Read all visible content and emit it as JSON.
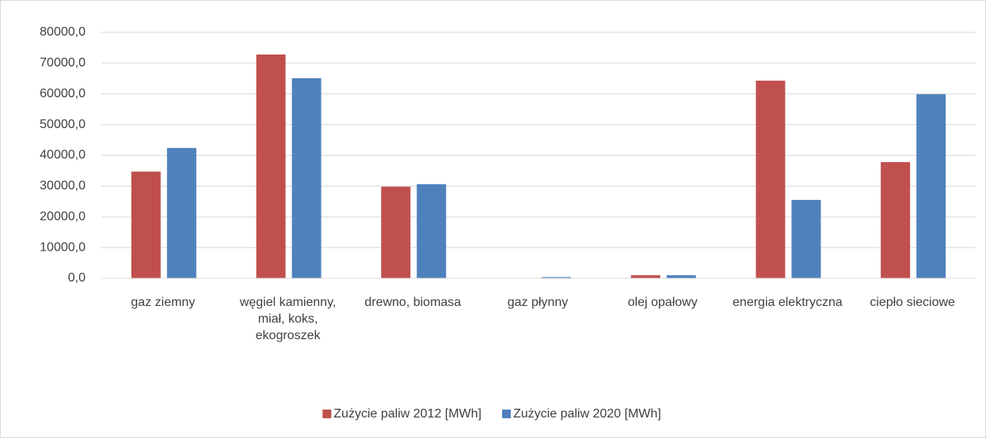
{
  "chart_data": {
    "type": "bar",
    "categories": [
      "gaz ziemny",
      "węgiel kamienny, miał, koks, ekogroszek",
      "drewno, biomasa",
      "gaz płynny",
      "olej opałowy",
      "energia elektryczna",
      "ciepło sieciowe"
    ],
    "series": [
      {
        "name": "Zużycie paliw 2012 [MWh]",
        "color": "#c0504d",
        "values": [
          34700,
          72800,
          29800,
          0,
          1000,
          64300,
          37800
        ]
      },
      {
        "name": "Zużycie paliw 2020 [MWh]",
        "color": "#4f81bd",
        "values": [
          42400,
          65100,
          30600,
          400,
          1000,
          25500,
          59900
        ]
      }
    ],
    "ylim": [
      0,
      80000
    ],
    "yticks": [
      {
        "value": 0,
        "label": "0,0"
      },
      {
        "value": 10000,
        "label": "10000,0"
      },
      {
        "value": 20000,
        "label": "20000,0"
      },
      {
        "value": 30000,
        "label": "30000,0"
      },
      {
        "value": 40000,
        "label": "40000,0"
      },
      {
        "value": 50000,
        "label": "50000,0"
      },
      {
        "value": 60000,
        "label": "60000,0"
      },
      {
        "value": 70000,
        "label": "70000,0"
      },
      {
        "value": 80000,
        "label": "80000,0"
      }
    ],
    "grid": true,
    "legend": "bottom"
  }
}
